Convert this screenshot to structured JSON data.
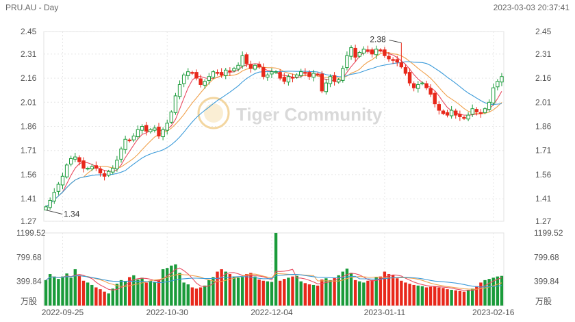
{
  "header": {
    "symbol": "PRU.AU - Day",
    "timestamp": "2023-03-03 20:37:41"
  },
  "watermark": "Tiger Community",
  "colors": {
    "up": "#1a9b3a",
    "down": "#e8281b",
    "ma5": "#e84a5f",
    "ma10": "#f0a04b",
    "ma20": "#3a9ad9",
    "grid": "#e6e6e6"
  },
  "chart_data": {
    "type": "candlestick",
    "price_axis": {
      "ticks": [
        "2.45",
        "2.31",
        "2.16",
        "2.01",
        "1.86",
        "1.71",
        "1.56",
        "1.41",
        "1.27"
      ],
      "range": [
        1.27,
        2.45
      ]
    },
    "volume_axis": {
      "ticks": [
        "1199.52",
        "799.68",
        "399.84"
      ],
      "unit": "万股",
      "range": [
        0,
        1199.52
      ]
    },
    "x_labels": [
      {
        "label": "2022-09-25",
        "index": 4
      },
      {
        "label": "2022-10-30",
        "index": 29
      },
      {
        "label": "2022-12-04",
        "index": 54
      },
      {
        "label": "2023-01-11",
        "index": 81
      },
      {
        "label": "2023-02-16",
        "index": 107
      }
    ],
    "annotations": [
      {
        "text": "1.34",
        "index": 0,
        "value": 1.34,
        "kind": "low"
      },
      {
        "text": "2.38",
        "index": 85,
        "value": 2.38,
        "kind": "high"
      }
    ],
    "closes": [
      1.36,
      1.4,
      1.45,
      1.5,
      1.55,
      1.62,
      1.66,
      1.67,
      1.64,
      1.6,
      1.6,
      1.61,
      1.6,
      1.57,
      1.55,
      1.58,
      1.6,
      1.65,
      1.72,
      1.78,
      1.77,
      1.8,
      1.84,
      1.86,
      1.83,
      1.84,
      1.85,
      1.8,
      1.84,
      1.88,
      1.95,
      2.05,
      2.12,
      2.18,
      2.2,
      2.19,
      2.16,
      2.12,
      2.14,
      2.17,
      2.2,
      2.19,
      2.18,
      2.21,
      2.2,
      2.22,
      2.24,
      2.3,
      2.25,
      2.22,
      2.24,
      2.23,
      2.17,
      2.18,
      2.2,
      2.2,
      2.16,
      2.14,
      2.17,
      2.16,
      2.18,
      2.2,
      2.19,
      2.17,
      2.19,
      2.18,
      2.08,
      2.13,
      2.17,
      2.14,
      2.15,
      2.22,
      2.3,
      2.35,
      2.29,
      2.32,
      2.34,
      2.33,
      2.31,
      2.34,
      2.33,
      2.3,
      2.28,
      2.27,
      2.26,
      2.23,
      2.19,
      2.13,
      2.1,
      2.12,
      2.13,
      2.1,
      2.06,
      2.0,
      1.96,
      1.94,
      1.93,
      1.96,
      1.93,
      1.92,
      1.91,
      1.93,
      1.97,
      1.95,
      1.94,
      1.97,
      2.01,
      2.1,
      2.14,
      2.17
    ],
    "volumes": [
      420,
      520,
      480,
      440,
      480,
      530,
      460,
      600,
      500,
      410,
      380,
      340,
      300,
      270,
      230,
      200,
      280,
      360,
      420,
      400,
      470,
      500,
      430,
      460,
      380,
      410,
      390,
      430,
      600,
      620,
      660,
      680,
      540,
      380,
      350,
      300,
      280,
      300,
      330,
      420,
      470,
      560,
      600,
      560,
      520,
      480,
      460,
      470,
      520,
      540,
      480,
      430,
      410,
      400,
      390,
      1200,
      410,
      440,
      460,
      480,
      490,
      400,
      370,
      350,
      340,
      330,
      430,
      450,
      420,
      460,
      500,
      560,
      610,
      540,
      420,
      400,
      380,
      410,
      420,
      470,
      480,
      560,
      520,
      500,
      450,
      410,
      380,
      360,
      340,
      330,
      320,
      300,
      310,
      320,
      300,
      290,
      270,
      260,
      250,
      240,
      230,
      260,
      280,
      320,
      380,
      420,
      440,
      460,
      480,
      490
    ]
  }
}
